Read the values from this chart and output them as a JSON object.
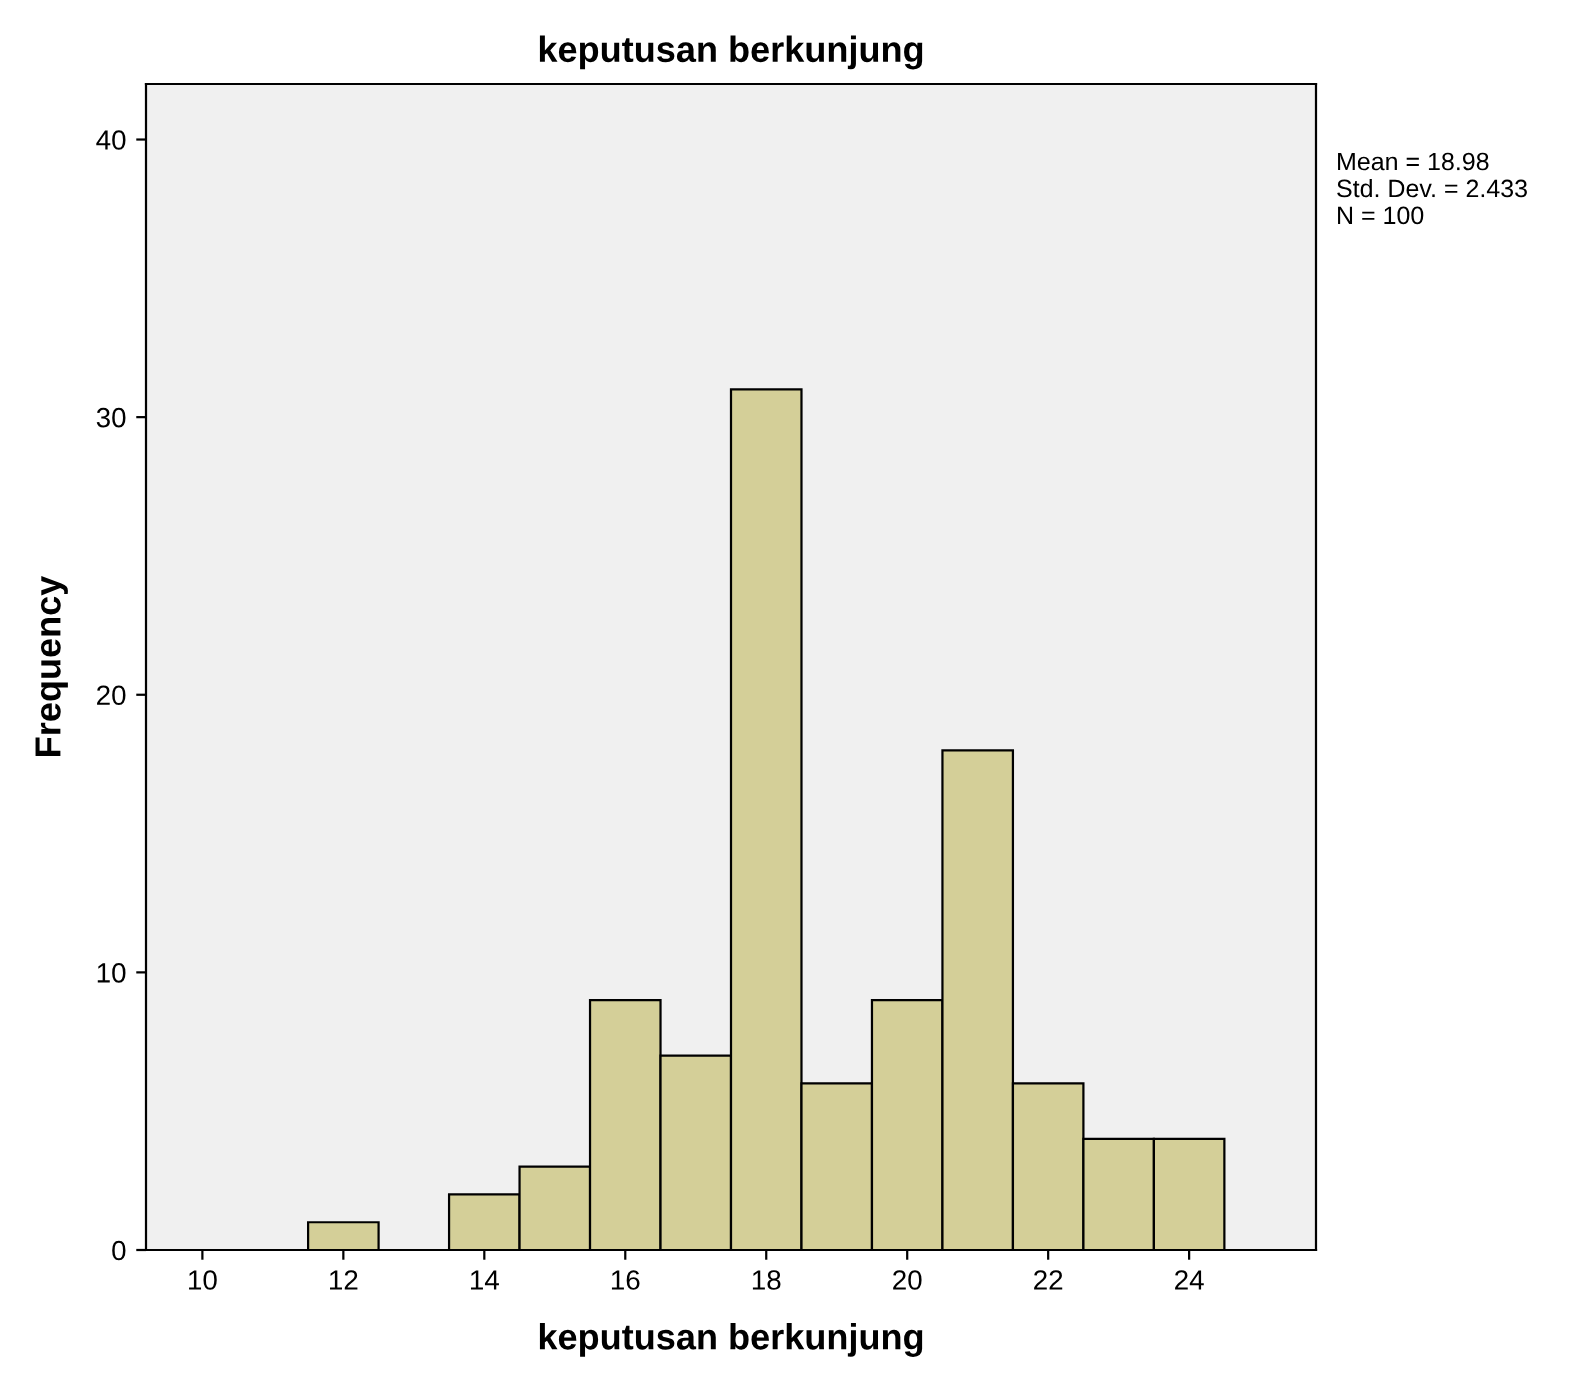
{
  "chart_data": {
    "type": "histogram",
    "title": "keputusan berkunjung",
    "xlabel": "keputusan berkunjung",
    "ylabel": "Frequency",
    "bins": [
      11.5,
      12.5,
      13.5,
      14.5,
      15.5,
      16.5,
      17.5,
      18.5,
      19.5,
      20.5,
      21.5,
      22.5,
      23.5,
      24.5
    ],
    "values": [
      1,
      0,
      2,
      3,
      9,
      7,
      31,
      6,
      9,
      18,
      6,
      4,
      4
    ],
    "color": "#d4cf98",
    "xlim": [
      9.2,
      25.8
    ],
    "xticks": [
      10,
      12,
      14,
      16,
      18,
      20,
      22,
      24
    ],
    "ylim": [
      0,
      42
    ],
    "yticks": [
      0,
      10,
      20,
      30,
      40
    ],
    "grid": false,
    "annotations": [
      "Mean = 18.98\nStd. Dev. = 2.433\nN = 100"
    ]
  }
}
